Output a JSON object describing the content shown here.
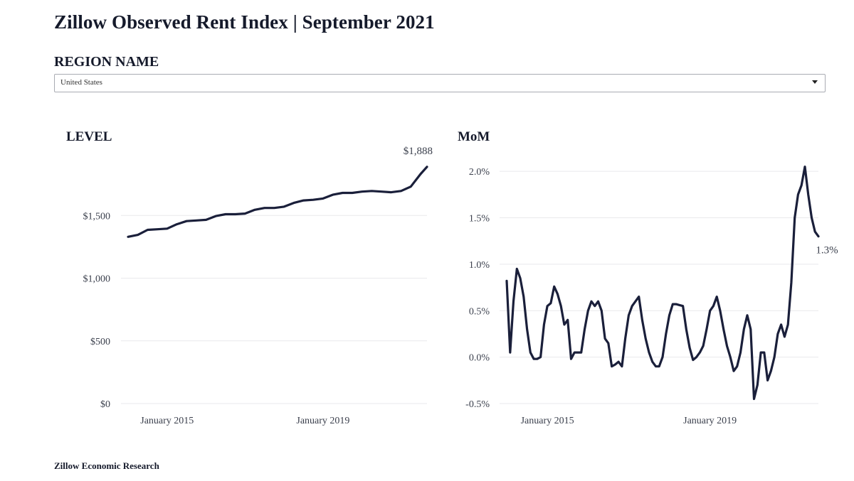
{
  "header": {
    "title": "Zillow Observed Rent Index | September 2021"
  },
  "region": {
    "label": "REGION NAME",
    "selected": "United States"
  },
  "footer": {
    "text": "Zillow Economic Research"
  },
  "colors": {
    "line": "#1a1f3a",
    "grid": "#e9e9ec",
    "text": "#3a3f4c"
  },
  "icons": {
    "dropdown": "chevron-down-icon"
  },
  "chart_data": [
    {
      "type": "line",
      "title": "LEVEL",
      "xlabel": "",
      "ylabel": "",
      "x_ticks": [
        {
          "date": "2015-01",
          "label": "January 2015"
        },
        {
          "date": "2019-01",
          "label": "January 2019"
        }
      ],
      "y_ticks": [
        {
          "value": 0,
          "label": "$0"
        },
        {
          "value": 500,
          "label": "$500"
        },
        {
          "value": 1000,
          "label": "$1,000"
        },
        {
          "value": 1500,
          "label": "$1,500"
        }
      ],
      "xlim": [
        "2014-01",
        "2021-09"
      ],
      "ylim": [
        0,
        2000
      ],
      "grid": true,
      "end_label": "$1,888",
      "series": [
        {
          "x": [
            "2014-01",
            "2014-04",
            "2014-07",
            "2014-10",
            "2015-01",
            "2015-04",
            "2015-07",
            "2015-10",
            "2016-01",
            "2016-04",
            "2016-07",
            "2016-10",
            "2017-01",
            "2017-04",
            "2017-07",
            "2017-10",
            "2018-01",
            "2018-04",
            "2018-07",
            "2018-10",
            "2019-01",
            "2019-04",
            "2019-07",
            "2019-10",
            "2020-01",
            "2020-04",
            "2020-07",
            "2020-10",
            "2021-01",
            "2021-04",
            "2021-07",
            "2021-09"
          ],
          "values": [
            1330,
            1345,
            1385,
            1390,
            1395,
            1430,
            1455,
            1460,
            1465,
            1495,
            1510,
            1510,
            1515,
            1545,
            1560,
            1560,
            1570,
            1600,
            1620,
            1625,
            1635,
            1665,
            1680,
            1680,
            1690,
            1695,
            1690,
            1685,
            1695,
            1730,
            1830,
            1888
          ]
        }
      ]
    },
    {
      "type": "line",
      "title": "MoM",
      "xlabel": "",
      "ylabel": "",
      "x_ticks": [
        {
          "date": "2015-01",
          "label": "January 2015"
        },
        {
          "date": "2019-01",
          "label": "January 2019"
        }
      ],
      "y_ticks": [
        {
          "value": -0.5,
          "label": "-0.5%"
        },
        {
          "value": 0.0,
          "label": "0.0%"
        },
        {
          "value": 0.5,
          "label": "0.5%"
        },
        {
          "value": 1.0,
          "label": "1.0%"
        },
        {
          "value": 1.5,
          "label": "1.5%"
        },
        {
          "value": 2.0,
          "label": "2.0%"
        }
      ],
      "xlim": [
        "2014-01",
        "2021-09"
      ],
      "ylim": [
        -0.5,
        2.2
      ],
      "grid": true,
      "end_label": "1.3%",
      "series": [
        {
          "x": [
            "2014-01",
            "2014-02",
            "2014-03",
            "2014-04",
            "2014-05",
            "2014-06",
            "2014-07",
            "2014-08",
            "2014-09",
            "2014-10",
            "2014-11",
            "2014-12",
            "2015-01",
            "2015-02",
            "2015-03",
            "2015-04",
            "2015-05",
            "2015-06",
            "2015-07",
            "2015-08",
            "2015-09",
            "2015-10",
            "2015-11",
            "2015-12",
            "2016-01",
            "2016-02",
            "2016-03",
            "2016-04",
            "2016-05",
            "2016-06",
            "2016-07",
            "2016-08",
            "2016-09",
            "2016-10",
            "2016-11",
            "2016-12",
            "2017-01",
            "2017-02",
            "2017-03",
            "2017-04",
            "2017-05",
            "2017-06",
            "2017-07",
            "2017-08",
            "2017-09",
            "2017-10",
            "2017-11",
            "2017-12",
            "2018-01",
            "2018-02",
            "2018-03",
            "2018-04",
            "2018-05",
            "2018-06",
            "2018-07",
            "2018-08",
            "2018-09",
            "2018-10",
            "2018-11",
            "2018-12",
            "2019-01",
            "2019-02",
            "2019-03",
            "2019-04",
            "2019-05",
            "2019-06",
            "2019-07",
            "2019-08",
            "2019-09",
            "2019-10",
            "2019-11",
            "2019-12",
            "2020-01",
            "2020-02",
            "2020-03",
            "2020-04",
            "2020-05",
            "2020-06",
            "2020-07",
            "2020-08",
            "2020-09",
            "2020-10",
            "2020-11",
            "2020-12",
            "2021-01",
            "2021-02",
            "2021-03",
            "2021-04",
            "2021-05",
            "2021-06",
            "2021-07",
            "2021-08",
            "2021-09"
          ],
          "values": [
            0.82,
            0.05,
            0.6,
            0.95,
            0.85,
            0.65,
            0.3,
            0.05,
            -0.02,
            -0.02,
            0.0,
            0.35,
            0.55,
            0.58,
            0.76,
            0.68,
            0.55,
            0.35,
            0.4,
            -0.02,
            0.05,
            0.05,
            0.05,
            0.3,
            0.5,
            0.6,
            0.55,
            0.6,
            0.5,
            0.2,
            0.15,
            -0.1,
            -0.08,
            -0.05,
            -0.1,
            0.2,
            0.45,
            0.55,
            0.6,
            0.65,
            0.4,
            0.2,
            0.05,
            -0.05,
            -0.1,
            -0.1,
            0.0,
            0.25,
            0.45,
            0.57,
            0.57,
            0.56,
            0.55,
            0.3,
            0.1,
            -0.03,
            0.0,
            0.05,
            0.12,
            0.3,
            0.5,
            0.55,
            0.65,
            0.5,
            0.3,
            0.12,
            0.0,
            -0.15,
            -0.1,
            0.05,
            0.3,
            0.45,
            0.3,
            -0.45,
            -0.3,
            0.05,
            0.05,
            -0.25,
            -0.15,
            0.0,
            0.25,
            0.35,
            0.22,
            0.35,
            0.8,
            1.5,
            1.75,
            1.85,
            2.05,
            1.75,
            1.5,
            1.35,
            1.3
          ]
        }
      ]
    }
  ]
}
